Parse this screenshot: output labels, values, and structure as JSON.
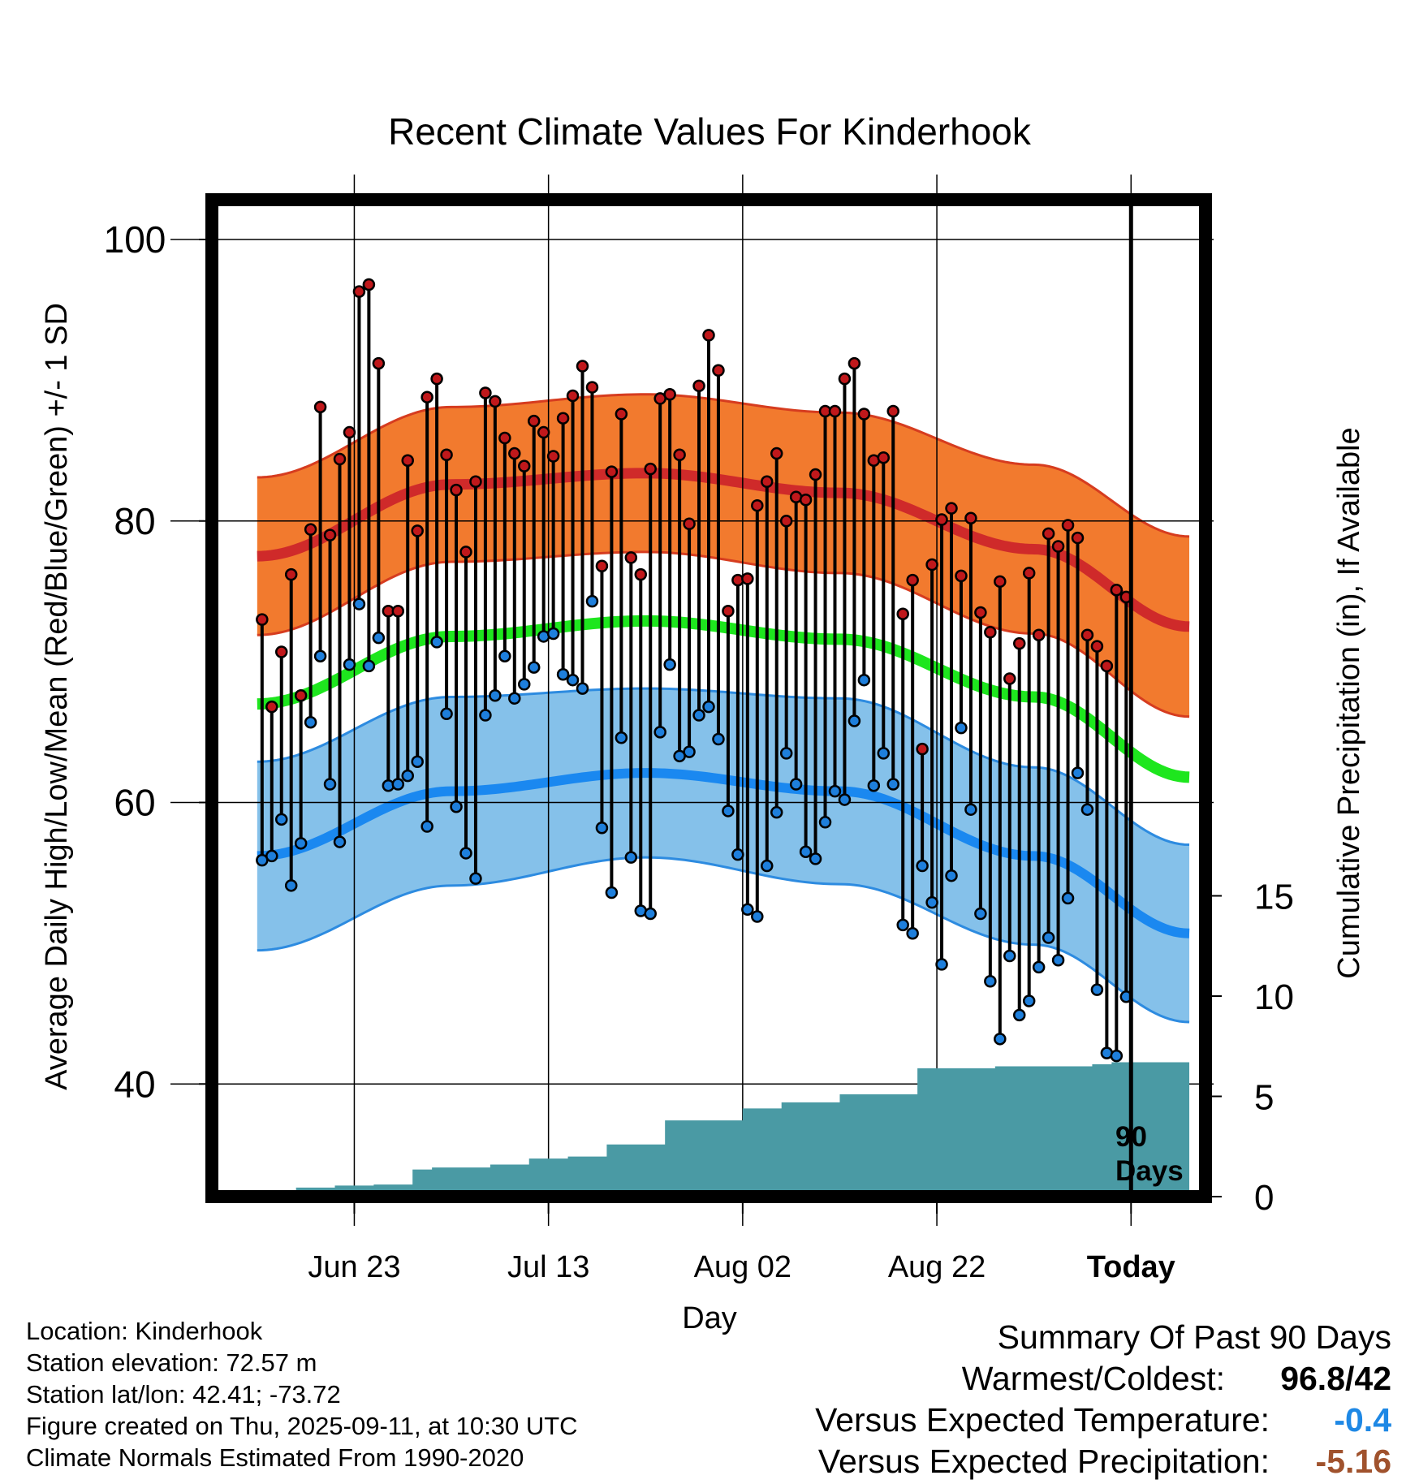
{
  "chart_data": {
    "type": "line",
    "title": "Recent Climate Values For Kinderhook",
    "xlabel": "Day",
    "ylabel": "Average Daily High/Low/Mean (Red/Blue/Green) +/- 1 SD",
    "y2label": "Cumulative Precipitation (in), If Available",
    "ylim": [
      32,
      103
    ],
    "y2lim": [
      0,
      18
    ],
    "xlim": [
      -94,
      7
    ],
    "y_ticks": [
      100,
      80,
      60,
      40
    ],
    "y2_ticks": [
      15,
      10,
      5,
      0
    ],
    "x_ticks": [
      {
        "label": "Jun 23",
        "day": -80
      },
      {
        "label": "Jul 13",
        "day": -60
      },
      {
        "label": "Aug 02",
        "day": -40
      },
      {
        "label": "Aug 22",
        "day": -20
      },
      {
        "label": "Today",
        "day": 0
      }
    ],
    "grid": true,
    "today_label": [
      "90",
      "Days"
    ],
    "normals": {
      "days": [
        -90,
        -70,
        -50,
        -30,
        -10,
        6
      ],
      "high_mean": [
        77.5,
        82.6,
        83.4,
        82.0,
        78.0,
        72.5
      ],
      "high_sd": [
        5.6,
        5.5,
        5.6,
        5.7,
        6.0,
        6.4
      ],
      "low_mean": [
        56.2,
        60.8,
        62.1,
        60.8,
        56.2,
        50.7
      ],
      "low_sd": [
        6.7,
        6.7,
        6.0,
        6.6,
        6.3,
        6.3
      ],
      "avg_mean": [
        67.0,
        71.8,
        72.9,
        71.6,
        67.5,
        61.8
      ]
    },
    "series": [
      {
        "name": "High",
        "color": "#c0181b",
        "values": [
          73.0,
          66.8,
          70.7,
          76.2,
          67.6,
          79.4,
          88.1,
          79.0,
          84.4,
          86.3,
          96.3,
          96.8,
          91.2,
          73.6,
          73.6,
          84.3,
          79.3,
          88.8,
          90.1,
          84.7,
          82.2,
          77.8,
          82.8,
          89.1,
          88.5,
          85.9,
          84.8,
          83.9,
          87.1,
          86.3,
          84.6,
          87.3,
          88.9,
          91.0,
          89.5,
          76.8,
          83.5,
          87.6,
          77.4,
          76.2,
          83.7,
          88.7,
          89.0,
          84.7,
          79.8,
          89.6,
          93.2,
          90.7,
          73.6,
          75.8,
          75.9,
          81.1,
          82.8,
          84.8,
          80.0,
          81.7,
          81.5,
          83.3,
          87.8,
          87.8,
          90.1,
          91.2,
          87.6,
          84.3,
          84.5,
          87.8,
          73.4,
          75.8,
          63.8,
          76.9,
          80.1,
          80.9,
          76.1,
          80.2,
          73.5,
          72.1,
          75.7,
          68.8,
          71.3,
          76.3,
          71.9,
          79.1,
          78.2,
          79.7,
          78.8,
          71.9,
          71.1,
          69.7,
          75.1,
          74.6
        ]
      },
      {
        "name": "Low",
        "color": "#1e7fdc",
        "values": [
          55.9,
          56.2,
          58.8,
          54.1,
          57.1,
          65.7,
          70.4,
          61.3,
          57.2,
          69.8,
          74.1,
          69.7,
          71.7,
          61.2,
          61.3,
          61.9,
          62.9,
          58.3,
          71.4,
          66.3,
          59.7,
          56.4,
          54.6,
          66.2,
          67.6,
          70.4,
          67.4,
          68.4,
          69.6,
          71.8,
          72.0,
          69.1,
          68.7,
          68.1,
          74.3,
          58.2,
          53.6,
          64.6,
          56.1,
          52.3,
          52.1,
          65.0,
          69.8,
          63.3,
          63.6,
          66.2,
          66.8,
          64.5,
          59.4,
          56.3,
          52.4,
          51.9,
          55.5,
          59.3,
          63.5,
          61.3,
          56.5,
          56.0,
          58.6,
          60.8,
          60.2,
          65.8,
          68.7,
          61.2,
          63.5,
          61.3,
          51.3,
          50.7,
          55.5,
          52.9,
          48.5,
          54.8,
          65.3,
          59.5,
          52.1,
          47.3,
          43.2,
          49.1,
          44.9,
          45.9,
          48.3,
          50.4,
          48.8,
          53.2,
          62.1,
          59.5,
          46.7,
          42.2,
          42.0,
          46.2
        ]
      },
      {
        "name": "Precipitation",
        "color": "#4a9aa4",
        "days": [
          -90,
          -86,
          -82,
          -78,
          -74,
          -72,
          -66,
          -62,
          -58,
          -54,
          -48,
          -46,
          -40,
          -36,
          -30,
          -28,
          -22,
          -14,
          -10,
          -4,
          -2
        ],
        "values": [
          0.0,
          0.45,
          0.55,
          0.6,
          1.35,
          1.45,
          1.6,
          1.9,
          2.0,
          2.6,
          3.8,
          3.8,
          4.4,
          4.7,
          5.1,
          5.1,
          6.4,
          6.5,
          6.5,
          6.6,
          6.7
        ]
      }
    ]
  },
  "info": {
    "location": "Location: Kinderhook",
    "elevation": "Station elevation: 72.57 m",
    "latlon": "Station lat/lon: 42.41; -73.72",
    "created": "Figure created on Thu, 2025-09-11, at 10:30 UTC",
    "normals": "Climate Normals Estimated From 1990-2020"
  },
  "summary": {
    "heading": "Summary Of Past 90 Days",
    "warmest_label": "Warmest/Coldest:",
    "warmest_value": "96.8/42",
    "temp_label": "Versus Expected Temperature:",
    "temp_value": "-0.4",
    "temp_color": "#1e88e5",
    "precip_label": "Versus Expected Precipitation:",
    "precip_value": "-5.16",
    "precip_color": "#a0522d"
  }
}
